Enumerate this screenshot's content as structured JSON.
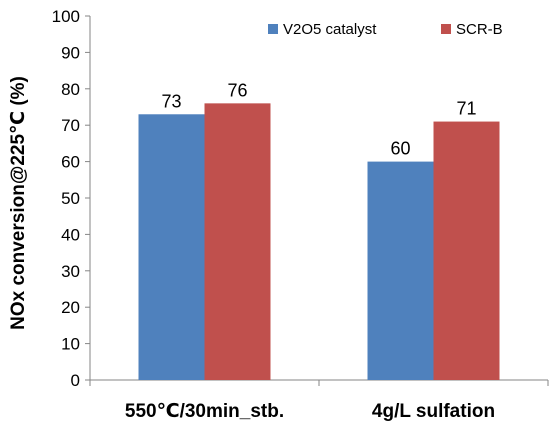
{
  "chart_data": {
    "type": "bar",
    "title": "",
    "xlabel": "",
    "ylabel": "NOx conversion@225℃ (%)",
    "ylim": [
      0,
      100
    ],
    "yticks": [
      0,
      10,
      20,
      30,
      40,
      50,
      60,
      70,
      80,
      90,
      100
    ],
    "grid": false,
    "legend_position": "top-right",
    "categories": [
      "550℃/30min_stb.",
      "4g/L sulfation"
    ],
    "series": [
      {
        "name": "V2O5 catalyst",
        "values": [
          73,
          60
        ],
        "color": "#4f81bd"
      },
      {
        "name": "SCR-B",
        "values": [
          76,
          71
        ],
        "color": "#c0504d"
      }
    ]
  }
}
